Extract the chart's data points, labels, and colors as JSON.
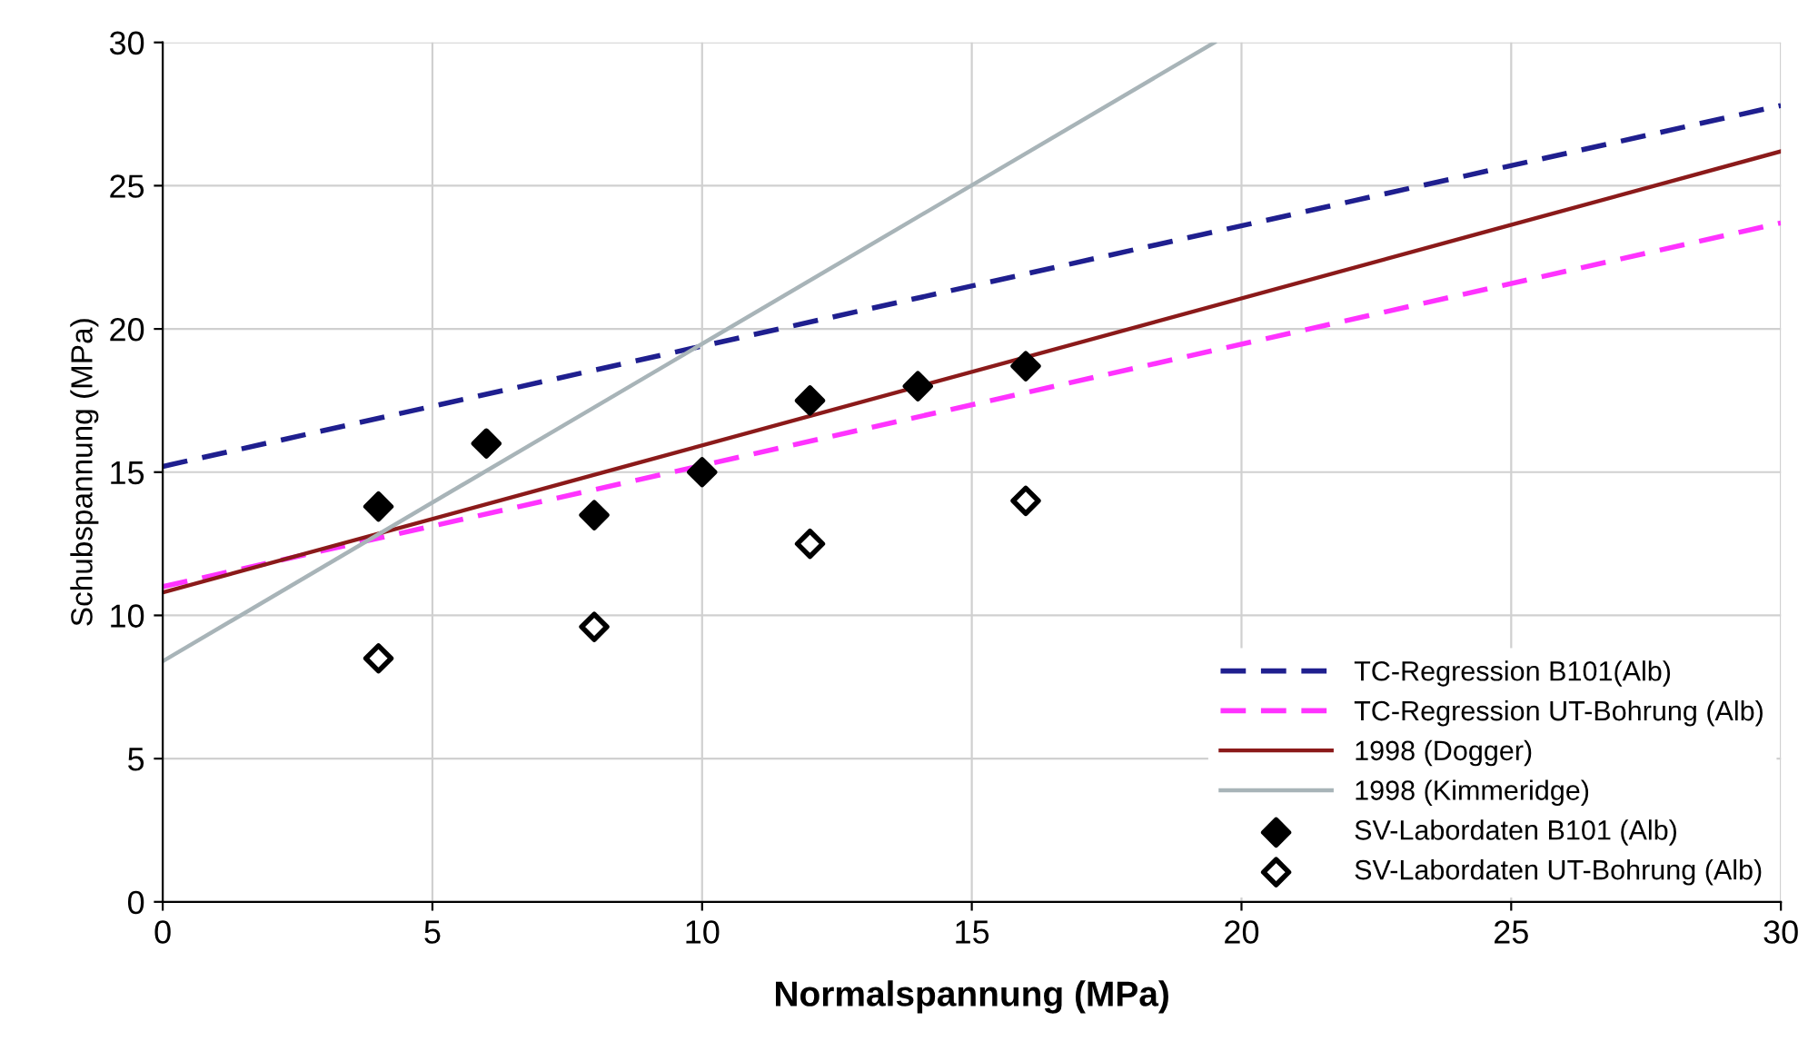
{
  "chart_data": {
    "type": "scatter",
    "xlabel": "Normalspannung (MPa)",
    "ylabel": "Schubspannung (MPa)",
    "xlim": [
      0,
      30
    ],
    "ylim": [
      0,
      30
    ],
    "xticks": [
      0,
      5,
      10,
      15,
      20,
      25,
      30
    ],
    "yticks": [
      0,
      5,
      10,
      15,
      20,
      25,
      30
    ],
    "grid": true,
    "legend": "bottom right",
    "series": [
      {
        "name": "TC-Regression B101(Alb)",
        "type": "line",
        "line_style": "dashed",
        "marker": "none",
        "color": "#1f1f8f",
        "x": [
          0,
          30
        ],
        "values": [
          15.2,
          27.8
        ]
      },
      {
        "name": "TC-Regression UT-Bohrung (Alb)",
        "type": "line",
        "line_style": "dashed",
        "marker": "none",
        "color": "#ff33ff",
        "x": [
          0,
          30
        ],
        "values": [
          11.0,
          23.7
        ]
      },
      {
        "name": "1998 (Dogger)",
        "type": "line",
        "line_style": "solid",
        "marker": "none",
        "color": "#8b1a1a",
        "x": [
          0,
          30
        ],
        "values": [
          10.8,
          26.2
        ]
      },
      {
        "name": "1998 (Kimmeridge)",
        "type": "line",
        "line_style": "solid",
        "marker": "none",
        "color": "#a8b4b8",
        "x": [
          0,
          19.5
        ],
        "values": [
          8.4,
          30
        ]
      },
      {
        "name": "SV-Labordaten B101 (Alb)",
        "marker": "diamond",
        "color": "#000000",
        "x": [
          4,
          6,
          8,
          10,
          12,
          14,
          16
        ],
        "values": [
          13.8,
          16.0,
          13.5,
          15.0,
          17.5,
          18.0,
          18.7
        ]
      },
      {
        "name": "SV-Labordaten UT-Bohrung (Alb)",
        "marker": "diamond",
        "color": "#ffffff",
        "x": [
          4,
          8,
          12,
          16
        ],
        "values": [
          8.5,
          9.6,
          12.5,
          14.0
        ]
      }
    ]
  }
}
